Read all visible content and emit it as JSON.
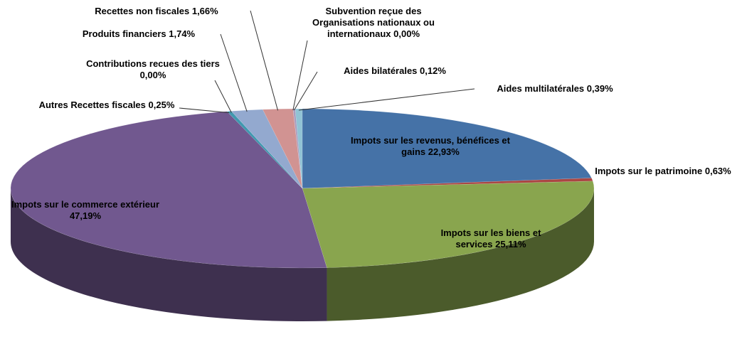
{
  "chart_data": {
    "type": "pie",
    "categories": [
      "Impots sur les revenus, bénéfices et gains",
      "Impots sur le patrimoine",
      "Impots sur les biens et services",
      "Impots sur le commerce extérieur",
      "Autres Recettes fiscales",
      "Contributions recues des tiers",
      "Produits financiers",
      "Recettes non fiscales",
      "Subvention reçue des Organisations nationaux ou internationaux",
      "Aides bilatérales",
      "Aides multilatérales"
    ],
    "values": [
      22.93,
      0.63,
      25.11,
      47.19,
      0.25,
      0.0,
      1.74,
      1.66,
      0.0,
      0.12,
      0.39
    ],
    "value_labels": [
      "22,93%",
      "0,63%",
      "25,11%",
      "47,19%",
      "0,25%",
      "0,00%",
      "1,74%",
      "1,66%",
      "0,00%",
      "0,12%",
      "0,39%"
    ],
    "colors": [
      "#4572a7",
      "#aa4643",
      "#89a54e",
      "#71588f",
      "#4198af",
      "#db843d",
      "#93a9cf",
      "#d19392",
      "#b9cd96",
      "#a99bbd",
      "#91c3d5"
    ]
  }
}
